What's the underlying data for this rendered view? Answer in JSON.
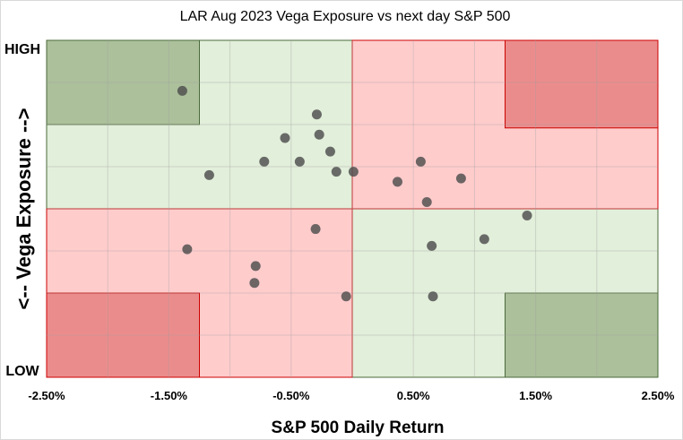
{
  "chart_data": {
    "type": "scatter",
    "title": "LAR Aug 2023 Vega Exposure vs next day S&P 500",
    "xlabel": "S&P 500 Daily Return",
    "ylabel": "<-- Vega Exposure -->",
    "y_high_label": "HIGH",
    "y_low_label": "LOW",
    "xlim": [
      -2.5,
      2.5
    ],
    "ylim": [
      0,
      1
    ],
    "x_ticks": [
      {
        "value": -2.5,
        "label": "-2.50%"
      },
      {
        "value": -1.5,
        "label": "-1.50%"
      },
      {
        "value": -0.5,
        "label": "-0.50%"
      },
      {
        "value": 0.5,
        "label": "0.50%"
      },
      {
        "value": 1.5,
        "label": "1.50%"
      },
      {
        "value": 2.5,
        "label": "2.50%"
      }
    ],
    "grid": true,
    "colors": {
      "green_light": "#e2efda",
      "green_dark": "#acc09c",
      "red_light": "#ffcccc",
      "red_dark": "#eb8c8c",
      "green_border": "#4a6a3a",
      "red_border": "#cc0000",
      "point": "#4d4d4d"
    },
    "regions": [
      {
        "x0": -2.5,
        "x1": 0,
        "y0": 0.5,
        "y1": 1,
        "tone": "green_light"
      },
      {
        "x0": 0,
        "x1": 2.5,
        "y0": 0,
        "y1": 0.5,
        "tone": "green_light"
      },
      {
        "x0": 0,
        "x1": 2.5,
        "y0": 0.5,
        "y1": 1,
        "tone": "red_light"
      },
      {
        "x0": -2.5,
        "x1": 0,
        "y0": 0,
        "y1": 0.5,
        "tone": "red_light"
      },
      {
        "x0": -2.5,
        "x1": -1.25,
        "y0": 0.75,
        "y1": 1,
        "tone": "green_dark"
      },
      {
        "x0": 1.25,
        "x1": 2.5,
        "y0": 0,
        "y1": 0.25,
        "tone": "green_dark"
      },
      {
        "x0": 1.25,
        "x1": 2.5,
        "y0": 0.74,
        "y1": 1,
        "tone": "red_dark"
      },
      {
        "x0": -2.5,
        "x1": -1.25,
        "y0": 0,
        "y1": 0.25,
        "tone": "red_dark"
      }
    ],
    "points": [
      {
        "x": -1.39,
        "y": 0.85
      },
      {
        "x": -1.17,
        "y": 0.6
      },
      {
        "x": -0.72,
        "y": 0.64
      },
      {
        "x": -0.55,
        "y": 0.71
      },
      {
        "x": -0.43,
        "y": 0.64
      },
      {
        "x": -0.29,
        "y": 0.78
      },
      {
        "x": -0.27,
        "y": 0.72
      },
      {
        "x": -0.18,
        "y": 0.67
      },
      {
        "x": -0.13,
        "y": 0.61
      },
      {
        "x": 0.01,
        "y": 0.61
      },
      {
        "x": 0.37,
        "y": 0.58
      },
      {
        "x": 0.56,
        "y": 0.64
      },
      {
        "x": 0.61,
        "y": 0.52
      },
      {
        "x": 0.89,
        "y": 0.59
      },
      {
        "x": 1.43,
        "y": 0.48
      },
      {
        "x": 1.08,
        "y": 0.41
      },
      {
        "x": 0.65,
        "y": 0.39
      },
      {
        "x": -0.3,
        "y": 0.44
      },
      {
        "x": -1.35,
        "y": 0.38
      },
      {
        "x": -0.79,
        "y": 0.33
      },
      {
        "x": -0.8,
        "y": 0.28
      },
      {
        "x": -0.05,
        "y": 0.24
      },
      {
        "x": 0.66,
        "y": 0.24
      }
    ]
  }
}
